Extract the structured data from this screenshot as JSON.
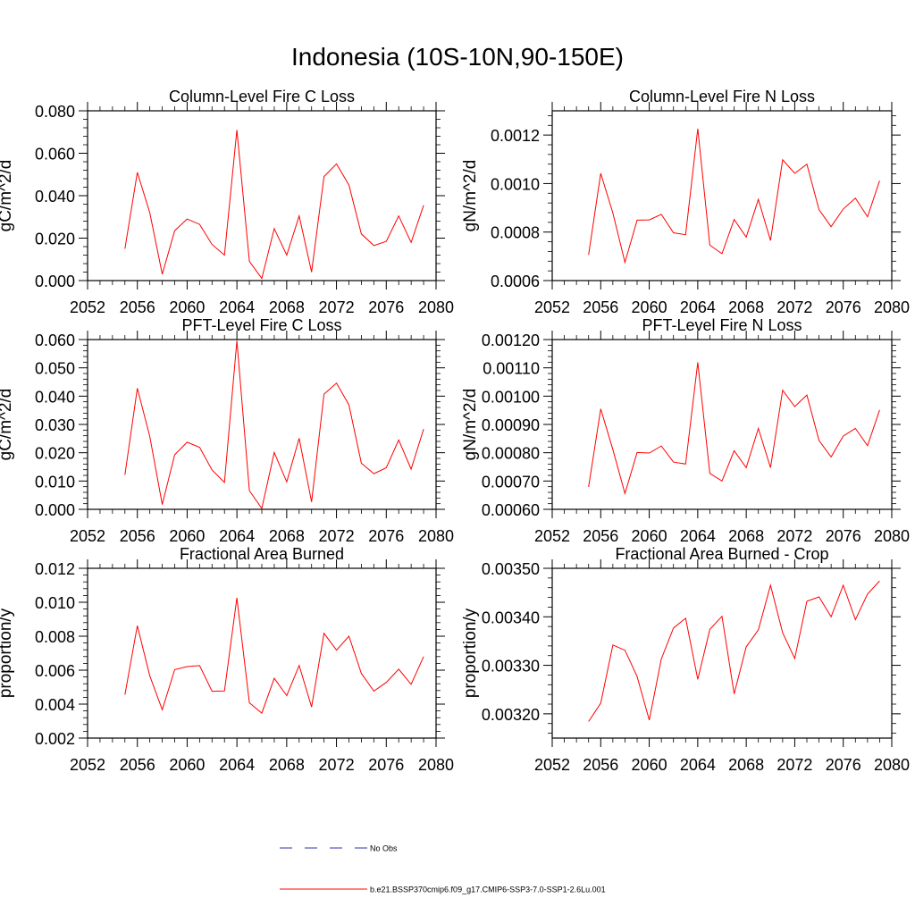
{
  "page": {
    "title": "Indonesia (10S-10N,90-150E)"
  },
  "legend": {
    "items": [
      {
        "label": "No Obs",
        "color": "#2f2fa8",
        "style": "dashed"
      },
      {
        "label": "b.e21.BSSP370cmip6.f09_g17.CMIP6-SSP3-7.0-SSP1-2.6Lu.001",
        "color": "#ff0000",
        "style": "solid"
      }
    ]
  },
  "chart_data": [
    {
      "type": "line",
      "title": "Column-Level Fire C Loss",
      "xlabel": "",
      "ylabel": "gC/m^2/d",
      "xlim": [
        2052,
        2080
      ],
      "ylim": [
        0,
        0.08
      ],
      "xticks": [
        2052,
        2056,
        2060,
        2064,
        2068,
        2072,
        2076,
        2080
      ],
      "xtick_labels": [
        "2052",
        "2056",
        "2060",
        "2064",
        "2068",
        "2072",
        "2076",
        "2080"
      ],
      "yticks": [
        0,
        0.02,
        0.04,
        0.06,
        0.08
      ],
      "ytick_labels": [
        "0.000",
        "0.020",
        "0.040",
        "0.060",
        "0.080"
      ],
      "x": [
        2055,
        2056,
        2057,
        2058,
        2059,
        2060,
        2061,
        2062,
        2063,
        2064,
        2065,
        2066,
        2067,
        2068,
        2069,
        2070,
        2071,
        2072,
        2073,
        2074,
        2075,
        2076,
        2077,
        2078,
        2079
      ],
      "series": [
        {
          "color": "#ff0000",
          "values": [
            0.015,
            0.051,
            0.032,
            0.003,
            0.0235,
            0.029,
            0.0265,
            0.017,
            0.012,
            0.071,
            0.009,
            0.001,
            0.0245,
            0.012,
            0.0305,
            0.004,
            0.049,
            0.055,
            0.045,
            0.022,
            0.0165,
            0.0185,
            0.0305,
            0.018,
            0.0355
          ]
        }
      ]
    },
    {
      "type": "line",
      "title": "Column-Level Fire N Loss",
      "xlabel": "",
      "ylabel": "gN/m^2/d",
      "xlim": [
        2052,
        2080
      ],
      "ylim": [
        0.0006,
        0.0013
      ],
      "xticks": [
        2052,
        2056,
        2060,
        2064,
        2068,
        2072,
        2076,
        2080
      ],
      "xtick_labels": [
        "2052",
        "2056",
        "2060",
        "2064",
        "2068",
        "2072",
        "2076",
        "2080"
      ],
      "yticks": [
        0.0006,
        0.0008,
        0.001,
        0.0012
      ],
      "ytick_labels": [
        "0.0006",
        "0.0008",
        "0.0010",
        "0.0012"
      ],
      "x": [
        2055,
        2056,
        2057,
        2058,
        2059,
        2060,
        2061,
        2062,
        2063,
        2064,
        2065,
        2066,
        2067,
        2068,
        2069,
        2070,
        2071,
        2072,
        2073,
        2074,
        2075,
        2076,
        2077,
        2078,
        2079
      ],
      "series": [
        {
          "color": "#ff0000",
          "values": [
            0.000706,
            0.001042,
            0.000878,
            0.000675,
            0.000849,
            0.00085,
            0.000873,
            0.000797,
            0.000789,
            0.001226,
            0.000746,
            0.000711,
            0.000852,
            0.000779,
            0.000935,
            0.000765,
            0.001098,
            0.001042,
            0.00108,
            0.000892,
            0.000822,
            0.000895,
            0.00094,
            0.000863,
            0.001012
          ]
        }
      ]
    },
    {
      "type": "line",
      "title": "PFT-Level Fire C Loss",
      "xlabel": "",
      "ylabel": "gC/m^2/d",
      "xlim": [
        2052,
        2080
      ],
      "ylim": [
        0,
        0.06
      ],
      "xticks": [
        2052,
        2056,
        2060,
        2064,
        2068,
        2072,
        2076,
        2080
      ],
      "xtick_labels": [
        "2052",
        "2056",
        "2060",
        "2064",
        "2068",
        "2072",
        "2076",
        "2080"
      ],
      "yticks": [
        0,
        0.01,
        0.02,
        0.03,
        0.04,
        0.05,
        0.06
      ],
      "ytick_labels": [
        "0.000",
        "0.010",
        "0.020",
        "0.030",
        "0.040",
        "0.050",
        "0.060"
      ],
      "x": [
        2055,
        2056,
        2057,
        2058,
        2059,
        2060,
        2061,
        2062,
        2063,
        2064,
        2065,
        2066,
        2067,
        2068,
        2069,
        2070,
        2071,
        2072,
        2073,
        2074,
        2075,
        2076,
        2077,
        2078,
        2079
      ],
      "series": [
        {
          "color": "#ff0000",
          "values": [
            0.0122,
            0.0428,
            0.0258,
            0.0017,
            0.0193,
            0.0237,
            0.0219,
            0.0139,
            0.0095,
            0.0596,
            0.0066,
            0.0003,
            0.0201,
            0.0097,
            0.0251,
            0.0026,
            0.0407,
            0.0446,
            0.0369,
            0.0163,
            0.0126,
            0.0147,
            0.0245,
            0.0142,
            0.0284
          ]
        }
      ]
    },
    {
      "type": "line",
      "title": "PFT-Level Fire N Loss",
      "xlabel": "",
      "ylabel": "gN/m^2/d",
      "xlim": [
        2052,
        2080
      ],
      "ylim": [
        0.0006,
        0.0012
      ],
      "xticks": [
        2052,
        2056,
        2060,
        2064,
        2068,
        2072,
        2076,
        2080
      ],
      "xtick_labels": [
        "2052",
        "2056",
        "2060",
        "2064",
        "2068",
        "2072",
        "2076",
        "2080"
      ],
      "yticks": [
        0.0006,
        0.0007,
        0.0008,
        0.0009,
        0.001,
        0.0011,
        0.0012
      ],
      "ytick_labels": [
        "0.00060",
        "0.00070",
        "0.00080",
        "0.00090",
        "0.00100",
        "0.00110",
        "0.00120"
      ],
      "x": [
        2055,
        2056,
        2057,
        2058,
        2059,
        2060,
        2061,
        2062,
        2063,
        2064,
        2065,
        2066,
        2067,
        2068,
        2069,
        2070,
        2071,
        2072,
        2073,
        2074,
        2075,
        2076,
        2077,
        2078,
        2079
      ],
      "series": [
        {
          "color": "#ff0000",
          "values": [
            0.000679,
            0.000955,
            0.000811,
            0.000656,
            0.000801,
            0.000799,
            0.000824,
            0.000767,
            0.00076,
            0.001119,
            0.000727,
            0.0007,
            0.000807,
            0.000747,
            0.000886,
            0.000747,
            0.001021,
            0.000963,
            0.001004,
            0.000843,
            0.000785,
            0.000859,
            0.000886,
            0.000825,
            0.000951
          ]
        }
      ]
    },
    {
      "type": "line",
      "title": "Fractional Area Burned",
      "xlabel": "",
      "ylabel": "proportion/y",
      "xlim": [
        2052,
        2080
      ],
      "ylim": [
        0.002,
        0.012
      ],
      "xticks": [
        2052,
        2056,
        2060,
        2064,
        2068,
        2072,
        2076,
        2080
      ],
      "xtick_labels": [
        "2052",
        "2056",
        "2060",
        "2064",
        "2068",
        "2072",
        "2076",
        "2080"
      ],
      "yticks": [
        0.002,
        0.004,
        0.006,
        0.008,
        0.01,
        0.012
      ],
      "ytick_labels": [
        "0.002",
        "0.004",
        "0.006",
        "0.008",
        "0.010",
        "0.012"
      ],
      "x": [
        2055,
        2056,
        2057,
        2058,
        2059,
        2060,
        2061,
        2062,
        2063,
        2064,
        2065,
        2066,
        2067,
        2068,
        2069,
        2070,
        2071,
        2072,
        2073,
        2074,
        2075,
        2076,
        2077,
        2078,
        2079
      ],
      "series": [
        {
          "color": "#ff0000",
          "values": [
            0.00455,
            0.00862,
            0.00567,
            0.00367,
            0.00603,
            0.00621,
            0.00627,
            0.00476,
            0.00478,
            0.01026,
            0.00408,
            0.00347,
            0.00552,
            0.0045,
            0.00628,
            0.00383,
            0.00817,
            0.00718,
            0.008,
            0.00581,
            0.00477,
            0.00528,
            0.00606,
            0.00517,
            0.0068
          ]
        }
      ]
    },
    {
      "type": "line",
      "title": "Fractional Area Burned - Crop",
      "xlabel": "",
      "ylabel": "proportion/y",
      "xlim": [
        2052,
        2080
      ],
      "ylim": [
        0.00315,
        0.0035
      ],
      "xticks": [
        2052,
        2056,
        2060,
        2064,
        2068,
        2072,
        2076,
        2080
      ],
      "xtick_labels": [
        "2052",
        "2056",
        "2060",
        "2064",
        "2068",
        "2072",
        "2076",
        "2080"
      ],
      "yticks": [
        0.0032,
        0.0033,
        0.0034,
        0.0035
      ],
      "ytick_labels": [
        "0.00320",
        "0.00330",
        "0.00340",
        "0.00350"
      ],
      "x": [
        2055,
        2056,
        2057,
        2058,
        2059,
        2060,
        2061,
        2062,
        2063,
        2064,
        2065,
        2066,
        2067,
        2068,
        2069,
        2070,
        2071,
        2072,
        2073,
        2074,
        2075,
        2076,
        2077,
        2078,
        2079
      ],
      "series": [
        {
          "color": "#ff0000",
          "values": [
            0.003184,
            0.003222,
            0.003342,
            0.003331,
            0.003277,
            0.003187,
            0.003313,
            0.003377,
            0.003397,
            0.003271,
            0.003374,
            0.003401,
            0.003241,
            0.003338,
            0.003373,
            0.003465,
            0.003367,
            0.003314,
            0.003432,
            0.003441,
            0.0034,
            0.003465,
            0.003394,
            0.003447,
            0.003474
          ]
        }
      ]
    }
  ]
}
